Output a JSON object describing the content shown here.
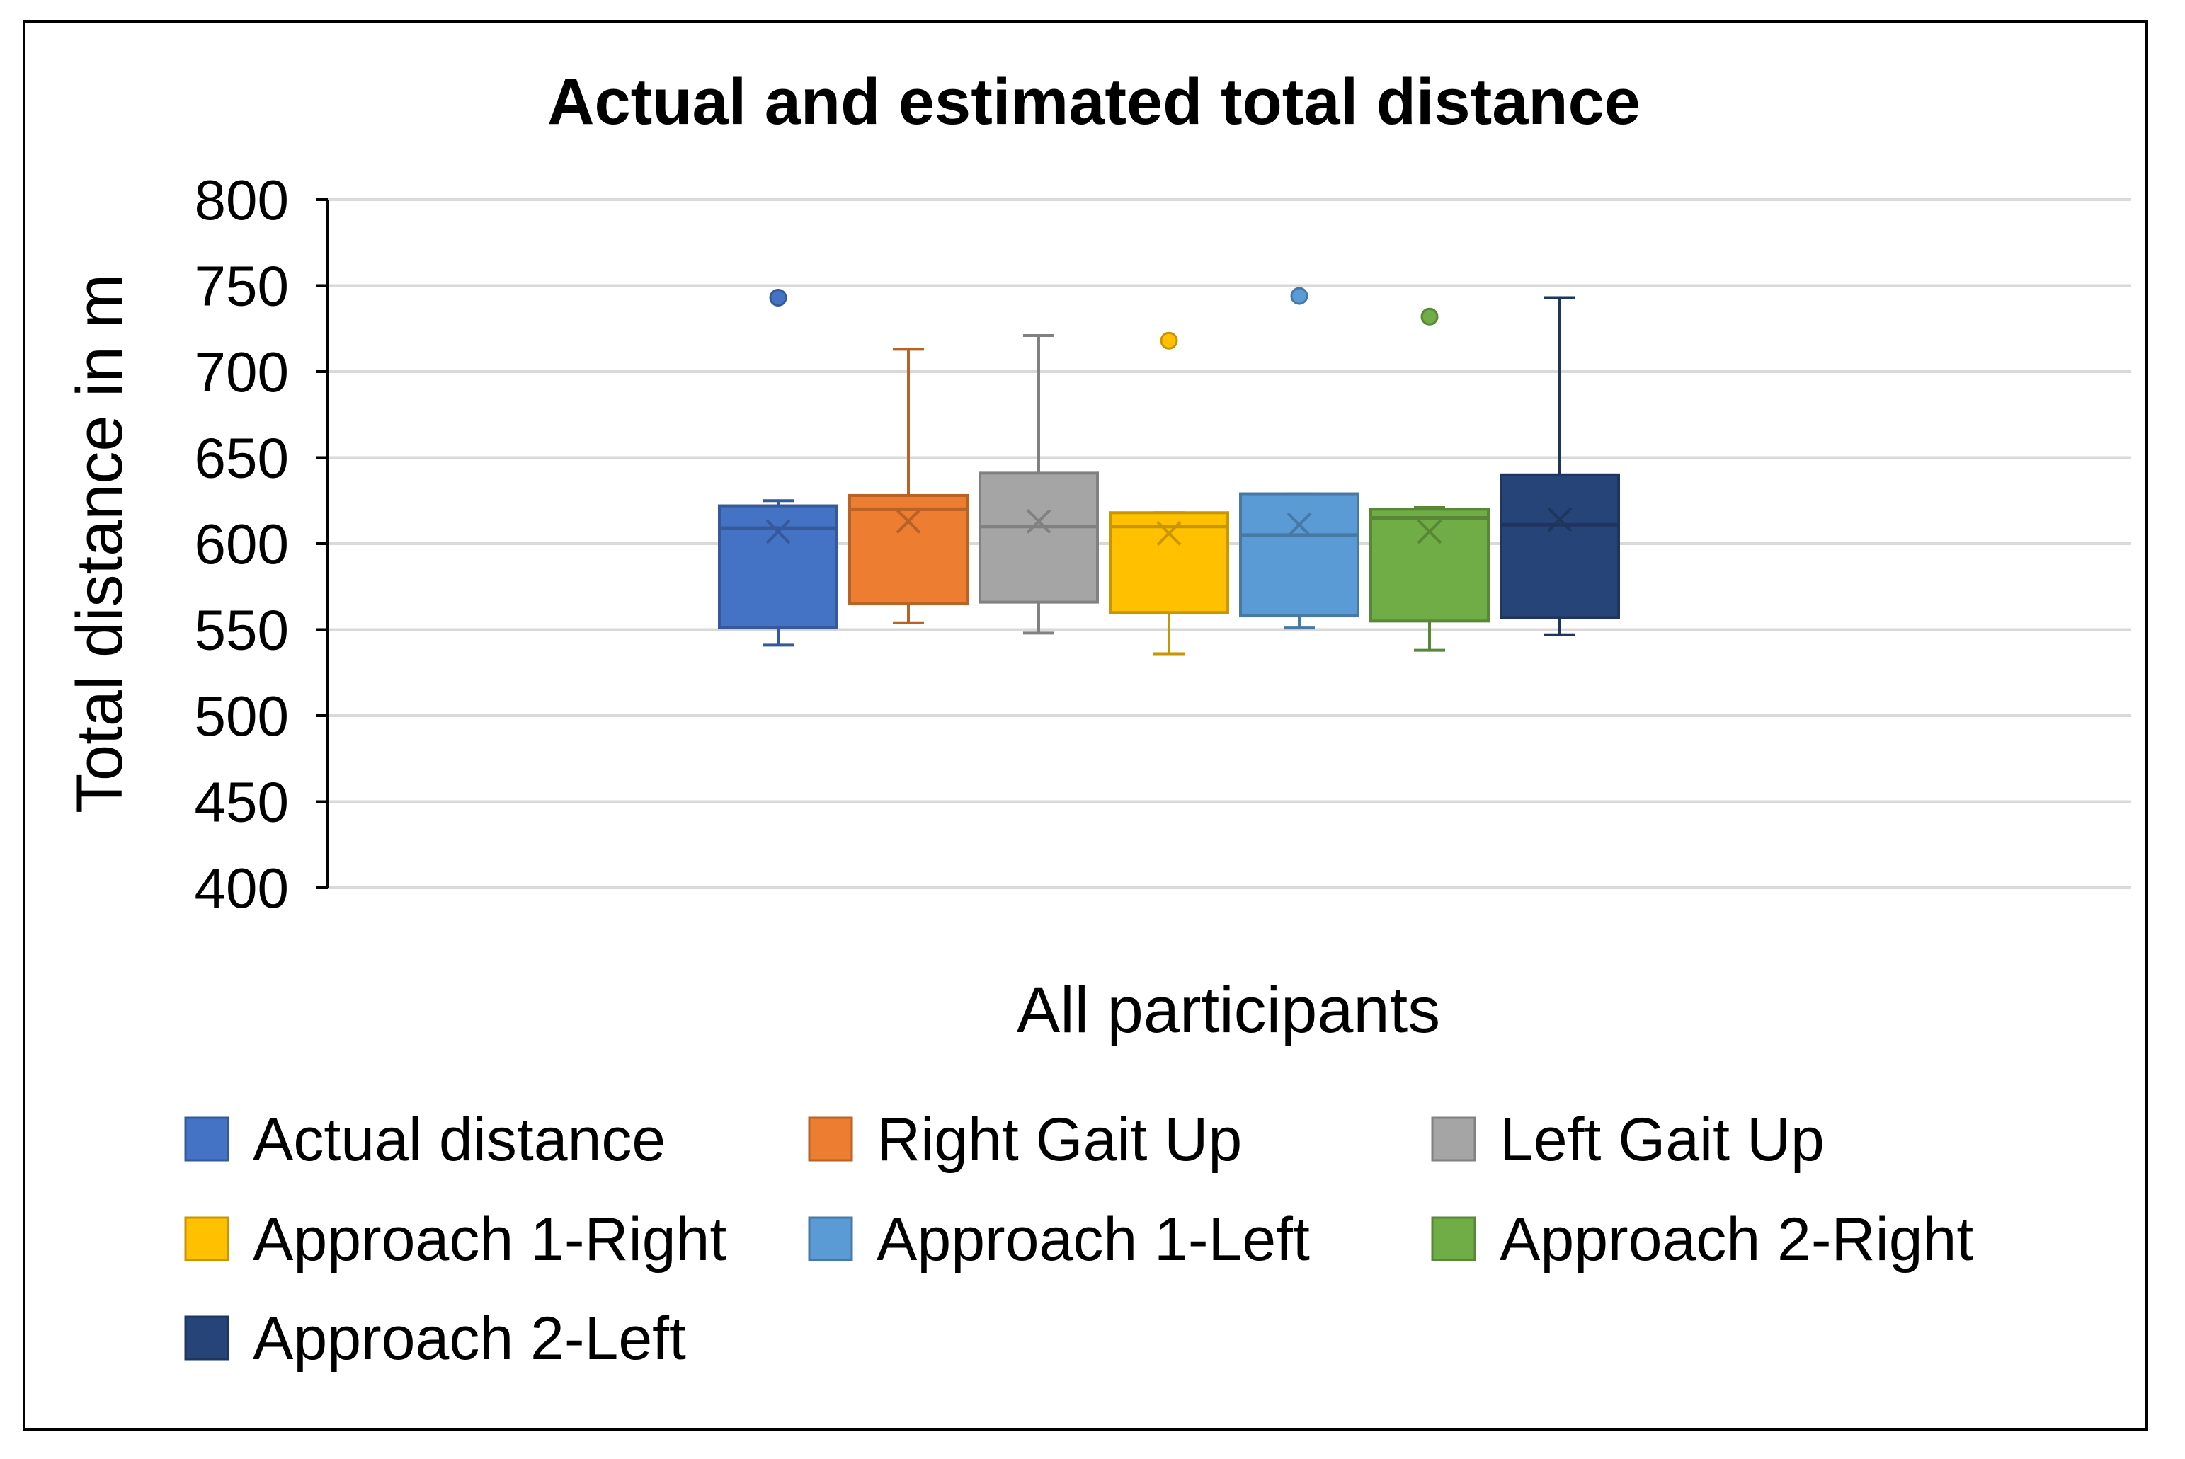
{
  "chart_data": {
    "type": "box",
    "title": "Actual and estimated total distance",
    "xlabel": "All participants",
    "ylabel": "Total distance in m",
    "ylim": [
      400,
      800
    ],
    "yticks": [
      "800",
      "750",
      "700",
      "650",
      "600",
      "550",
      "500",
      "450",
      "400"
    ],
    "grid": true,
    "legend_position": "bottom",
    "series": [
      {
        "name": "Actual distance",
        "color": "#4472C4",
        "min": 541,
        "q1": 551,
        "median": 609,
        "q3": 622,
        "max": 625,
        "mean": 607,
        "outliers": [
          743
        ]
      },
      {
        "name": "Right Gait Up",
        "color": "#ED7D31",
        "min": 554,
        "q1": 565,
        "median": 620,
        "q3": 628,
        "max": 713,
        "mean": 613,
        "outliers": []
      },
      {
        "name": "Left Gait Up",
        "color": "#A5A5A5",
        "min": 548,
        "q1": 566,
        "median": 610,
        "q3": 641,
        "max": 721,
        "mean": 613,
        "outliers": []
      },
      {
        "name": "Approach 1-Right",
        "color": "#FFC000",
        "min": 536,
        "q1": 560,
        "median": 610,
        "q3": 618,
        "max": 618,
        "mean": 606,
        "outliers": [
          718
        ]
      },
      {
        "name": "Approach 1-Left",
        "color": "#5B9BD5",
        "min": 551,
        "q1": 558,
        "median": 605,
        "q3": 629,
        "max": 629,
        "mean": 611,
        "outliers": [
          744
        ]
      },
      {
        "name": "Approach 2-Right",
        "color": "#70AD47",
        "min": 538,
        "q1": 555,
        "median": 615,
        "q3": 620,
        "max": 621,
        "mean": 607,
        "outliers": [
          732
        ]
      },
      {
        "name": "Approach 2-Left",
        "color": "#264478",
        "min": 547,
        "q1": 557,
        "median": 611,
        "q3": 640,
        "max": 743,
        "mean": 614,
        "outliers": []
      }
    ]
  }
}
